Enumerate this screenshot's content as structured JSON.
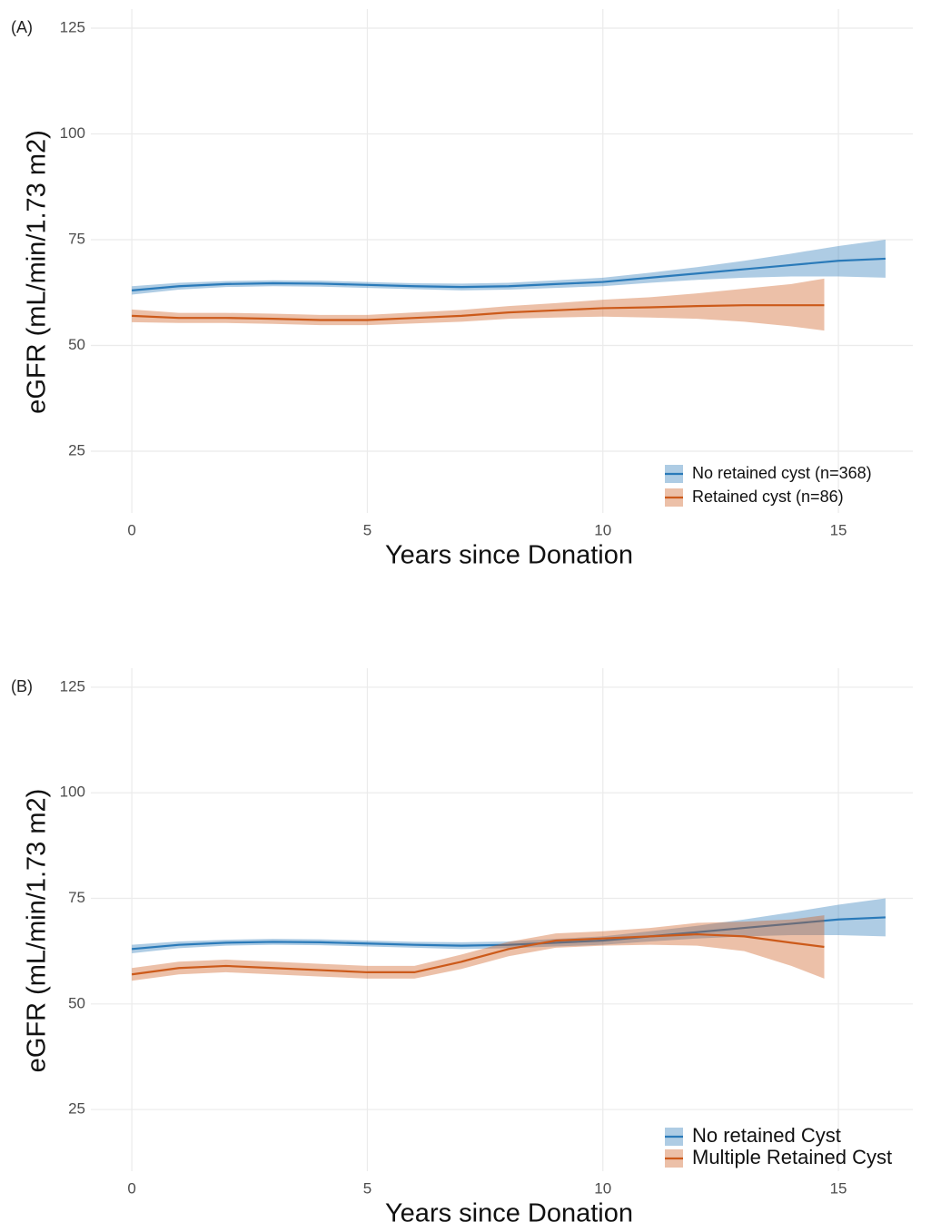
{
  "chart_data": [
    {
      "type": "line",
      "panel_label": "(A)",
      "x_label": "Years since Donation",
      "y_label": "eGFR (mL/min/1.73 m2)",
      "xlim": [
        -0.87,
        16.58
      ],
      "ylim": [
        10.4,
        129.5
      ],
      "xticks": [
        0,
        5,
        10,
        15
      ],
      "yticks": [
        25,
        50,
        75,
        100,
        125
      ],
      "grid": true,
      "legend": "bottom-right",
      "series": [
        {
          "name": "No retained cyst (n=368)",
          "color": "#2a7ab9",
          "x": [
            0,
            1,
            2,
            3,
            4,
            5,
            6,
            7,
            8,
            9,
            10,
            11,
            12,
            13,
            14,
            15,
            16
          ],
          "values": [
            63,
            64,
            64.5,
            64.7,
            64.6,
            64.3,
            64,
            63.8,
            64,
            64.5,
            65,
            66,
            67,
            68,
            69,
            70,
            70.5
          ],
          "lower": [
            62,
            63.2,
            63.8,
            64,
            63.9,
            63.6,
            63.3,
            63,
            63.2,
            63.6,
            64,
            64.8,
            65.5,
            66,
            66.3,
            66.3,
            66
          ],
          "upper": [
            64,
            64.8,
            65.2,
            65.4,
            65.3,
            65,
            64.7,
            64.6,
            64.8,
            65.4,
            66,
            67.2,
            68.5,
            70,
            71.7,
            73.5,
            75
          ]
        },
        {
          "name": "Retained cyst (n=86)",
          "color": "#cc5a1a",
          "x": [
            0,
            1,
            2,
            3,
            4,
            5,
            6,
            7,
            8,
            9,
            10,
            11,
            12,
            13,
            14,
            14.7
          ],
          "values": [
            57,
            56.5,
            56.5,
            56.3,
            56,
            56,
            56.5,
            57,
            57.8,
            58.3,
            58.8,
            59,
            59.3,
            59.5,
            59.5,
            59.5
          ],
          "lower": [
            55.5,
            55.3,
            55.3,
            55.1,
            54.8,
            54.8,
            55.2,
            55.6,
            56.3,
            56.6,
            56.8,
            56.6,
            56.3,
            55.6,
            54.5,
            53.5
          ],
          "upper": [
            58.5,
            57.7,
            57.7,
            57.5,
            57.2,
            57.2,
            57.8,
            58.4,
            59.3,
            60,
            60.8,
            61.4,
            62.3,
            63.4,
            64.5,
            65.8
          ]
        }
      ]
    },
    {
      "type": "line",
      "panel_label": "(B)",
      "x_label": "Years since Donation",
      "y_label": "eGFR (mL/min/1.73 m2)",
      "xlim": [
        -0.87,
        16.58
      ],
      "ylim": [
        10.4,
        129.5
      ],
      "xticks": [
        0,
        5,
        10,
        15
      ],
      "yticks": [
        25,
        50,
        75,
        100,
        125
      ],
      "grid": true,
      "legend": "bottom-right",
      "series": [
        {
          "name": "No retained Cyst",
          "color": "#2a7ab9",
          "x": [
            0,
            1,
            2,
            3,
            4,
            5,
            6,
            7,
            8,
            9,
            10,
            11,
            12,
            13,
            14,
            15,
            16
          ],
          "values": [
            63,
            64,
            64.5,
            64.7,
            64.6,
            64.3,
            64,
            63.8,
            64,
            64.5,
            65,
            66,
            67,
            68,
            69,
            70,
            70.5
          ],
          "lower": [
            62,
            63.2,
            63.8,
            64,
            63.9,
            63.6,
            63.3,
            63,
            63.2,
            63.6,
            64,
            64.8,
            65.5,
            66,
            66.3,
            66.3,
            66
          ],
          "upper": [
            64,
            64.8,
            65.2,
            65.4,
            65.3,
            65,
            64.7,
            64.6,
            64.8,
            65.4,
            66,
            67.2,
            68.5,
            70,
            71.7,
            73.5,
            75
          ]
        },
        {
          "name": "Multiple Retained Cyst",
          "color": "#cc5a1a",
          "x": [
            0,
            1,
            2,
            3,
            4,
            5,
            6,
            7,
            8,
            9,
            10,
            11,
            12,
            13,
            14,
            14.7
          ],
          "values": [
            57,
            58.5,
            59,
            58.5,
            58,
            57.5,
            57.5,
            60,
            63,
            65,
            65.5,
            66,
            66.5,
            66,
            64.5,
            63.5
          ],
          "lower": [
            55.5,
            57,
            57.5,
            57,
            56.5,
            56,
            56,
            58.3,
            61.3,
            63.3,
            63.8,
            64,
            63.8,
            62.5,
            59,
            56
          ],
          "upper": [
            58.5,
            60,
            60.5,
            60,
            59.5,
            59,
            59,
            61.7,
            64.7,
            66.7,
            67.2,
            68,
            69.2,
            69.5,
            70,
            71
          ]
        }
      ]
    }
  ]
}
